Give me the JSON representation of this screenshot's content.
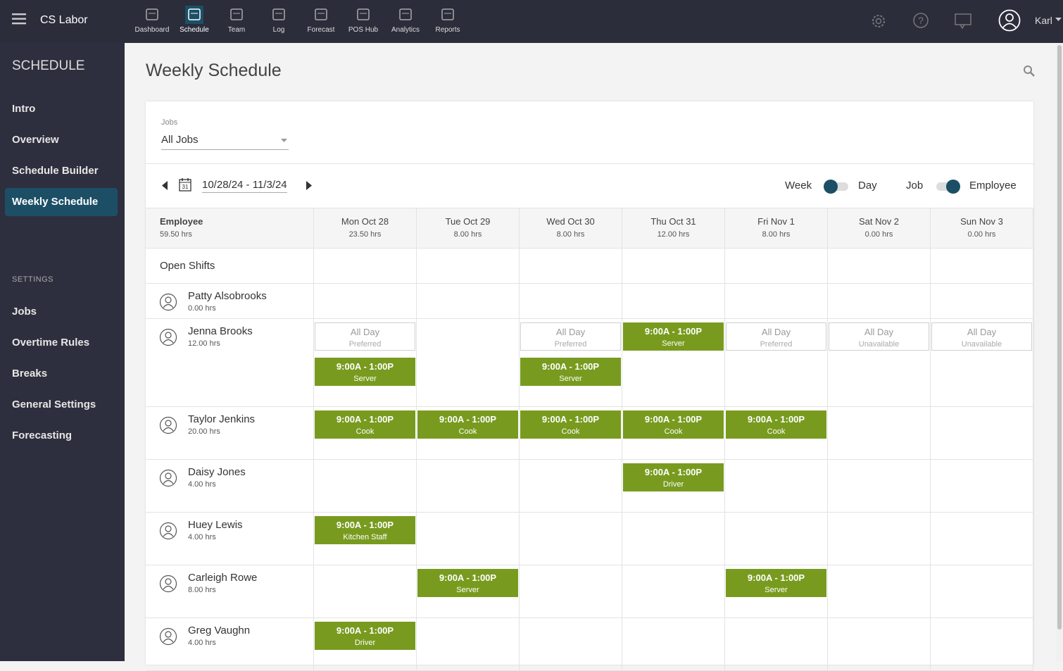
{
  "app": {
    "name": "CS Labor",
    "user": "Karl"
  },
  "nav": [
    {
      "label": "Dashboard"
    },
    {
      "label": "Schedule",
      "active": true
    },
    {
      "label": "Team"
    },
    {
      "label": "Log"
    },
    {
      "label": "Forecast"
    },
    {
      "label": "POS Hub"
    },
    {
      "label": "Analytics"
    },
    {
      "label": "Reports"
    }
  ],
  "sidebar": {
    "title": "SCHEDULE",
    "items": [
      "Intro",
      "Overview",
      "Schedule Builder",
      "Weekly Schedule"
    ],
    "active": 3,
    "settings_title": "SETTINGS",
    "settings_items": [
      "Jobs",
      "Overtime Rules",
      "Breaks",
      "General Settings",
      "Forecasting"
    ]
  },
  "page": {
    "title": "Weekly Schedule",
    "jobs_label": "Jobs",
    "jobs_value": "All Jobs",
    "date_range": "10/28/24 - 11/3/24",
    "calendar_day": "31",
    "toggles": [
      "Week",
      "Day",
      "Job",
      "Employee"
    ]
  },
  "grid": {
    "header": {
      "label": "Employee",
      "hours": "59.50 hrs"
    },
    "days": [
      {
        "label": "Mon Oct 28",
        "hours": "23.50 hrs"
      },
      {
        "label": "Tue Oct 29",
        "hours": "8.00 hrs"
      },
      {
        "label": "Wed Oct 30",
        "hours": "8.00 hrs"
      },
      {
        "label": "Thu Oct 31",
        "hours": "12.00 hrs"
      },
      {
        "label": "Fri Nov 1",
        "hours": "8.00 hrs"
      },
      {
        "label": "Sat Nov 2",
        "hours": "0.00 hrs"
      },
      {
        "label": "Sun Nov 3",
        "hours": "0.00 hrs"
      }
    ],
    "open_shifts": "Open Shifts",
    "employees": [
      {
        "name": "Patty Alsobrooks",
        "hours": "0.00 hrs",
        "cells": [
          [],
          [],
          [],
          [],
          [],
          [],
          []
        ]
      },
      {
        "name": "Jenna Brooks",
        "hours": "12.00 hrs",
        "cells": [
          [
            {
              "type": "avail",
              "title": "All Day",
              "note": "Preferred"
            },
            {
              "type": "shift",
              "time": "9:00A - 1:00P",
              "role": "Server"
            }
          ],
          [],
          [
            {
              "type": "avail",
              "title": "All Day",
              "note": "Preferred"
            },
            {
              "type": "shift",
              "time": "9:00A - 1:00P",
              "role": "Server"
            }
          ],
          [
            {
              "type": "shift",
              "time": "9:00A - 1:00P",
              "role": "Server"
            }
          ],
          [
            {
              "type": "avail",
              "title": "All Day",
              "note": "Preferred"
            }
          ],
          [
            {
              "type": "avail",
              "title": "All Day",
              "note": "Unavailable"
            }
          ],
          [
            {
              "type": "avail",
              "title": "All Day",
              "note": "Unavailable"
            }
          ]
        ]
      },
      {
        "name": "Taylor Jenkins",
        "hours": "20.00 hrs",
        "cells": [
          [
            {
              "type": "shift",
              "time": "9:00A - 1:00P",
              "role": "Cook"
            }
          ],
          [
            {
              "type": "shift",
              "time": "9:00A - 1:00P",
              "role": "Cook"
            }
          ],
          [
            {
              "type": "shift",
              "time": "9:00A - 1:00P",
              "role": "Cook"
            }
          ],
          [
            {
              "type": "shift",
              "time": "9:00A - 1:00P",
              "role": "Cook"
            }
          ],
          [
            {
              "type": "shift",
              "time": "9:00A - 1:00P",
              "role": "Cook"
            }
          ],
          [],
          []
        ]
      },
      {
        "name": "Daisy Jones",
        "hours": "4.00 hrs",
        "cells": [
          [],
          [],
          [],
          [
            {
              "type": "shift",
              "time": "9:00A - 1:00P",
              "role": "Driver"
            }
          ],
          [],
          [],
          []
        ]
      },
      {
        "name": "Huey Lewis",
        "hours": "4.00 hrs",
        "cells": [
          [
            {
              "type": "shift",
              "time": "9:00A - 1:00P",
              "role": "Kitchen Staff"
            }
          ],
          [],
          [],
          [],
          [],
          [],
          []
        ]
      },
      {
        "name": "Carleigh Rowe",
        "hours": "8.00 hrs",
        "cells": [
          [],
          [
            {
              "type": "shift",
              "time": "9:00A - 1:00P",
              "role": "Server"
            }
          ],
          [],
          [],
          [
            {
              "type": "shift",
              "time": "9:00A - 1:00P",
              "role": "Server"
            }
          ],
          [],
          []
        ]
      },
      {
        "name": "Greg Vaughn",
        "hours": "4.00 hrs",
        "cells": [
          [
            {
              "type": "shift",
              "time": "9:00A - 1:00P",
              "role": "Driver"
            }
          ],
          [],
          [],
          [],
          [],
          [],
          []
        ]
      }
    ]
  }
}
